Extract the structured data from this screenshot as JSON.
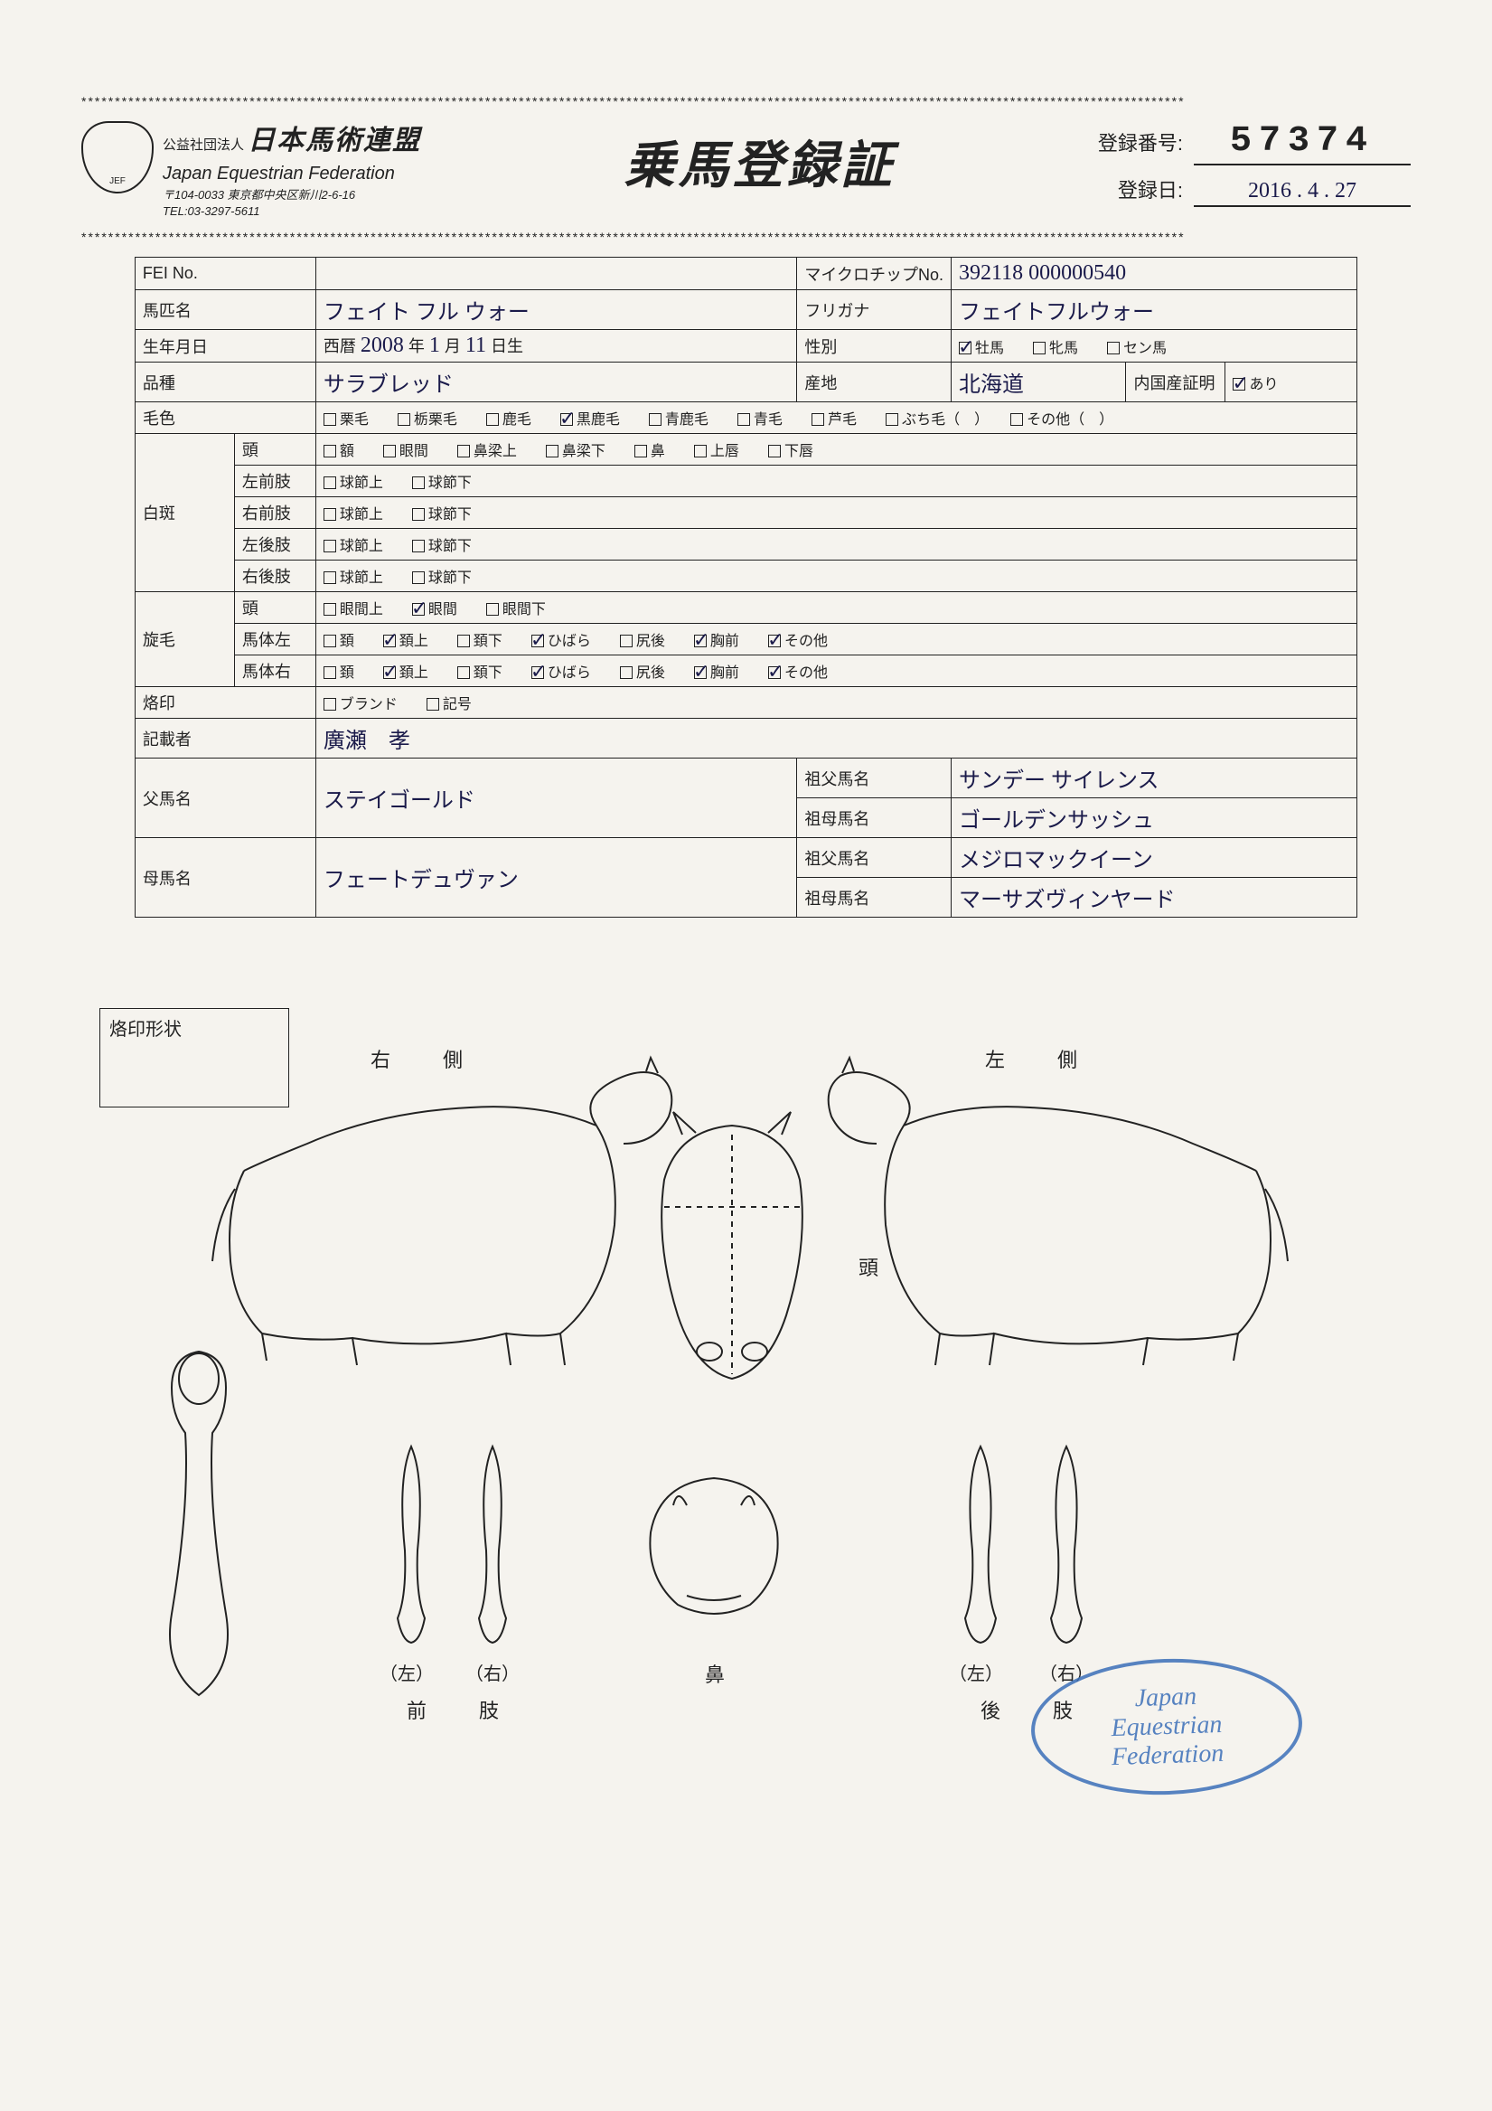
{
  "divider": "********************************************************************************************************************************************************************",
  "org": {
    "prefix": "公益社団法人",
    "jp_name": "日本馬術連盟",
    "en_name": "Japan Equestrian Federation",
    "addr1": "〒104-0033 東京都中央区新川2-6-16",
    "addr2": "TEL:03-3297-5611",
    "logo_abbr": "JEF"
  },
  "doc_title": "乗馬登録証",
  "reg": {
    "no_label": "登録番号:",
    "no_value": "57374",
    "date_label": "登録日:",
    "date_value": "2016 . 4 . 27"
  },
  "fields": {
    "fei_label": "FEI No.",
    "fei_value": "",
    "chip_label": "マイクロチップNo.",
    "chip_value": "392118 000000540",
    "horse_label": "馬匹名",
    "horse_value": "フェイト フル ウォー",
    "kana_label": "フリガナ",
    "kana_value": "フェイトフルウォー",
    "dob_label": "生年月日",
    "dob_prefix": "西暦",
    "dob_year": "2008",
    "dob_mid": "年",
    "dob_month": "1",
    "dob_mid2": "月",
    "dob_day": "11",
    "dob_suffix": "日生",
    "sex_label": "性別",
    "sex_opts": [
      "牡馬",
      "牝馬",
      "セン馬"
    ],
    "sex_checked": 0,
    "breed_label": "品種",
    "breed_value": "サラブレッド",
    "origin_label": "産地",
    "origin_value": "北海道",
    "cert_label": "内国産証明",
    "cert_opt": "あり",
    "cert_checked": true,
    "coat_label": "毛色",
    "coat_opts": [
      "栗毛",
      "栃栗毛",
      "鹿毛",
      "黒鹿毛",
      "青鹿毛",
      "青毛",
      "芦毛",
      "ぶち毛（　）",
      "その他（　）"
    ],
    "coat_checked": 3,
    "white_label": "白斑",
    "white_rows": [
      {
        "part": "頭",
        "opts": [
          "額",
          "眼間",
          "鼻梁上",
          "鼻梁下",
          "鼻",
          "上唇",
          "下唇"
        ]
      },
      {
        "part": "左前肢",
        "opts": [
          "球節上",
          "球節下"
        ]
      },
      {
        "part": "右前肢",
        "opts": [
          "球節上",
          "球節下"
        ]
      },
      {
        "part": "左後肢",
        "opts": [
          "球節上",
          "球節下"
        ]
      },
      {
        "part": "右後肢",
        "opts": [
          "球節上",
          "球節下"
        ]
      }
    ],
    "whorl_label": "旋毛",
    "whorl_rows": [
      {
        "part": "頭",
        "opts": [
          "眼間上",
          "眼間",
          "眼間下"
        ],
        "checked": [
          1
        ]
      },
      {
        "part": "馬体左",
        "opts": [
          "頚",
          "頚上",
          "頚下",
          "ひばら",
          "尻後",
          "胸前",
          "その他"
        ],
        "checked": [
          1,
          3,
          5,
          6
        ]
      },
      {
        "part": "馬体右",
        "opts": [
          "頚",
          "頚上",
          "頚下",
          "ひばら",
          "尻後",
          "胸前",
          "その他"
        ],
        "checked": [
          1,
          3,
          5,
          6
        ]
      }
    ],
    "brand_label": "烙印",
    "brand_opts": [
      "ブランド",
      "記号"
    ],
    "recorder_label": "記載者",
    "recorder_value": "廣瀬　孝",
    "sire_label": "父馬名",
    "sire_value": "ステイゴールド",
    "dam_label": "母馬名",
    "dam_value": "フェートデュヴァン",
    "gsire_label": "祖父馬名",
    "gdam_label": "祖母馬名",
    "sire_gsire": "サンデー サイレンス",
    "sire_gdam": "ゴールデンサッシュ",
    "dam_gsire": "メジロマックイーン",
    "dam_gdam": "マーサズヴィンヤード"
  },
  "diagram": {
    "brand_box": "烙印形状",
    "right_side": "右　側",
    "left_side": "左　側",
    "head": "頭",
    "nose": "鼻",
    "fore": "前　肢",
    "hind": "後　肢",
    "left_p": "（左）",
    "right_p": "（右）"
  },
  "stamp": {
    "l1": "Japan",
    "l2": "Equestrian",
    "l3": "Federation"
  }
}
